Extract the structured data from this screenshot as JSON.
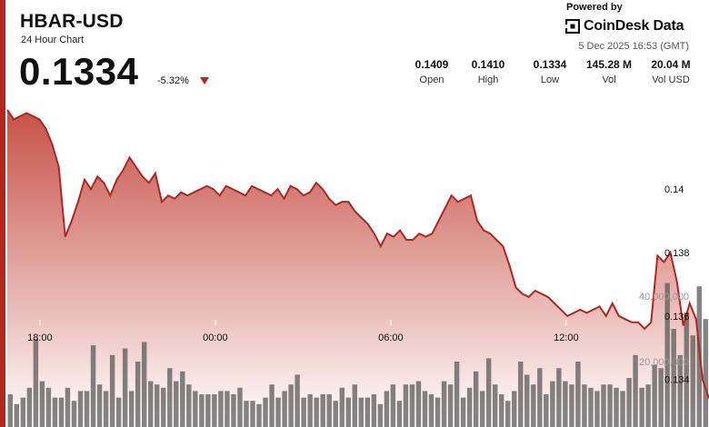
{
  "header": {
    "pair": "HBAR-USD",
    "subtitle": "24 Hour Chart",
    "price": "0.1334",
    "change": "-5.32%"
  },
  "branding": {
    "powered_by": "Powered by",
    "brand": "CoinDesk Data",
    "timestamp": "5 Dec 2025 16:53 (GMT)"
  },
  "stats": [
    {
      "value": "0.1409",
      "label": "Open"
    },
    {
      "value": "0.1410",
      "label": "High"
    },
    {
      "value": "0.1334",
      "label": "Low"
    },
    {
      "value": "145.28 M",
      "label": "Vol"
    },
    {
      "value": "20.04 M",
      "label": "Vol USD"
    }
  ],
  "colors": {
    "line": "#b3261e",
    "fill_top": "#c44a3f",
    "fill_bottom": "#ffffff",
    "volume_bar": "#555555",
    "accent": "#c0241c"
  },
  "chart_data": {
    "type": "area",
    "series": [
      {
        "values": [
          0.1425,
          0.1422,
          0.1423,
          0.1424,
          0.1423,
          0.1422,
          0.1419,
          0.1414,
          0.1407,
          0.1385,
          0.139,
          0.1396,
          0.1403,
          0.14,
          0.1404,
          0.1402,
          0.1398,
          0.1403,
          0.1406,
          0.141,
          0.1407,
          0.1404,
          0.1402,
          0.1405,
          0.1396,
          0.1398,
          0.1397,
          0.1399,
          0.1398,
          0.1399,
          0.14,
          0.1401,
          0.14,
          0.1398,
          0.1401,
          0.14,
          0.1399,
          0.1398,
          0.1401,
          0.14,
          0.1399,
          0.1398,
          0.14,
          0.1397,
          0.1401,
          0.14,
          0.1398,
          0.1399,
          0.1402,
          0.14,
          0.1397,
          0.1395,
          0.1396,
          0.1396,
          0.1393,
          0.1391,
          0.1389,
          0.1386,
          0.1382,
          0.1386,
          0.1385,
          0.1387,
          0.1384,
          0.1384,
          0.1386,
          0.1385,
          0.1386,
          0.139,
          0.1394,
          0.1398,
          0.1396,
          0.1397,
          0.1398,
          0.139,
          0.1387,
          0.1386,
          0.1384,
          0.1382,
          0.1376,
          0.1369,
          0.1367,
          0.1366,
          0.1368,
          0.1367,
          0.1366,
          0.1364,
          0.1362,
          0.136,
          0.1361,
          0.1362,
          0.1361,
          0.1362,
          0.1363,
          0.136,
          0.1364,
          0.136,
          0.1359,
          0.1358,
          0.1358,
          0.1356,
          0.1358,
          0.1379,
          0.1377,
          0.138,
          0.1371,
          0.1357,
          0.1364,
          0.1359,
          0.134,
          0.1334
        ]
      }
    ],
    "price_ylim": [
      0.1325,
      0.1431
    ],
    "y_ticks": [
      "0.14",
      "0.138",
      "0.136",
      "0.134"
    ],
    "x_ticks": [
      "18:00",
      "00:00",
      "06:00",
      "12:00"
    ],
    "volume": {
      "values": [
        10,
        7,
        9,
        12,
        27,
        14,
        12,
        9,
        9,
        12,
        8,
        11,
        11,
        25,
        13,
        11,
        22,
        9,
        24,
        11,
        20,
        26,
        14,
        13,
        12,
        18,
        14,
        17,
        13,
        11,
        10,
        10,
        10,
        11,
        11,
        10,
        12,
        8,
        8,
        7,
        9,
        13,
        9,
        11,
        13,
        16,
        9,
        10,
        9,
        10,
        10,
        8,
        12,
        9,
        13,
        9,
        9,
        10,
        7,
        11,
        13,
        8,
        13,
        13,
        14,
        11,
        10,
        9,
        14,
        13,
        20,
        9,
        12,
        17,
        11,
        21,
        13,
        10,
        8,
        11,
        20,
        16,
        13,
        18,
        10,
        14,
        18,
        14,
        13,
        20,
        13,
        12,
        11,
        13,
        13,
        12,
        11,
        15,
        22,
        12,
        13,
        19,
        18,
        44,
        30,
        22,
        35,
        28,
        43,
        33
      ],
      "ylim": [
        0,
        50
      ],
      "y_ticks": [
        {
          "value": 40,
          "label": "40,000,000"
        },
        {
          "value": 20,
          "label": "20,000,000"
        }
      ]
    },
    "grid": true
  }
}
